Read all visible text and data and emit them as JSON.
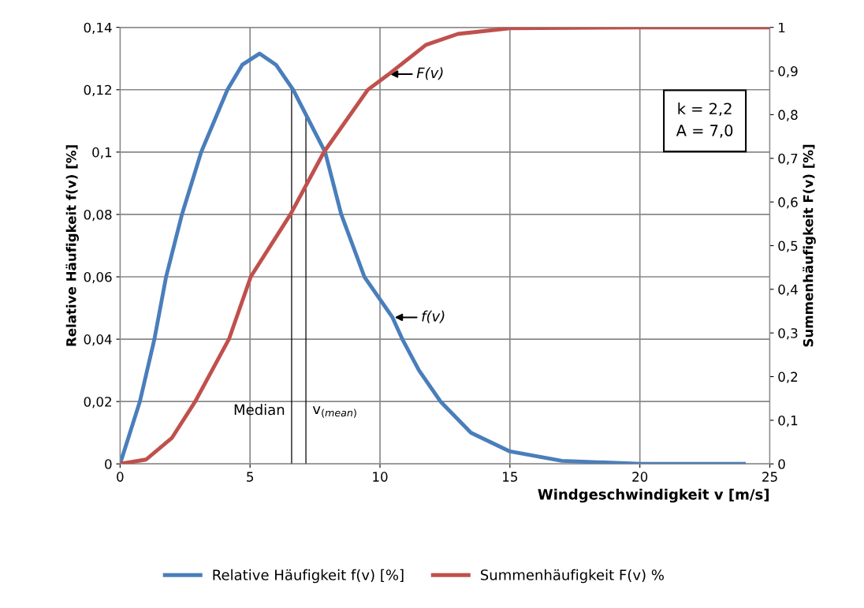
{
  "chart_data": {
    "type": "line",
    "xlabel": "Windgeschwindigkeit v [m/s]",
    "ylabel": "Relative Häufigkeit f(v) [%]",
    "y2label": "Summenhäufigkeit F(v) [%]",
    "series": [
      {
        "name": "Relative Häufigkeit f(v) [%]",
        "color": "#4a7ebb",
        "x": [
          0,
          0.76,
          1.32,
          1.77,
          2.38,
          3.12,
          4.13,
          4.7,
          5.37,
          6.0,
          6.66,
          7.89,
          8.51,
          9.4,
          10.48,
          10.86,
          11.5,
          12.33,
          13.5,
          15,
          17,
          20,
          24
        ],
        "values": [
          0,
          0.02,
          0.04,
          0.06,
          0.08,
          0.1,
          0.12,
          0.128,
          0.1316,
          0.128,
          0.12,
          0.1,
          0.08,
          0.06,
          0.047,
          0.04,
          0.03,
          0.02,
          0.01,
          0.004,
          0.001,
          0,
          0
        ]
      },
      {
        "name": "Summenhäufigkeit F(v) %",
        "color": "#c0504d",
        "axis": "y2",
        "x": [
          0,
          1,
          2,
          2.89,
          4.19,
          5.03,
          6.55,
          7.84,
          9.53,
          10.3,
          11.77,
          13,
          15,
          20,
          25
        ],
        "values": [
          0,
          0.01,
          0.06,
          0.143,
          0.286,
          0.429,
          0.571,
          0.714,
          0.857,
          0.891,
          0.96,
          0.985,
          0.998,
          1,
          1
        ]
      }
    ],
    "xlim": [
      0,
      25
    ],
    "xticks": [
      0,
      5,
      10,
      15,
      20,
      25
    ],
    "ylim": [
      0,
      0.14
    ],
    "yticks": [
      0,
      {
        "value": 0.02,
        "label": "0,02"
      },
      {
        "value": 0.04,
        "label": "0,04"
      },
      {
        "value": 0.06,
        "label": "0,06"
      },
      {
        "value": 0.08,
        "label": "0,08"
      },
      {
        "value": 0.1,
        "label": "0,1"
      },
      {
        "value": 0.12,
        "label": "0,12"
      },
      {
        "value": 0.14,
        "label": "0,14"
      }
    ],
    "y2lim": [
      0,
      1
    ],
    "y2ticks": [
      0,
      {
        "value": 0.1,
        "label": "0,1"
      },
      {
        "value": 0.2,
        "label": "0,2"
      },
      {
        "value": 0.3,
        "label": "0,3"
      },
      {
        "value": 0.4,
        "label": "0,4"
      },
      {
        "value": 0.5,
        "label": "0,5"
      },
      {
        "value": 0.6,
        "label": "0,6"
      },
      {
        "value": 0.7,
        "label": "0,7"
      },
      {
        "value": 0.8,
        "label": "0,8"
      },
      {
        "value": 0.9,
        "label": "0,9"
      },
      1
    ],
    "ref_lines": [
      {
        "axis": "x",
        "value": 6.6,
        "label": "Median",
        "color": "#000000"
      },
      {
        "axis": "x",
        "value": 7.15,
        "label": "v$_{(mean)}$",
        "color": "#000000"
      }
    ],
    "annotations": [
      {
        "text": "F(v)",
        "x": 10.3,
        "y": 0.125
      },
      {
        "text": "f(v)",
        "x": 10.48,
        "y": 0.047
      },
      "k = 2,2\nA = 7,0"
    ],
    "grid": true,
    "legend": "bottom",
    "marker": "none",
    "line_style": "solid"
  }
}
